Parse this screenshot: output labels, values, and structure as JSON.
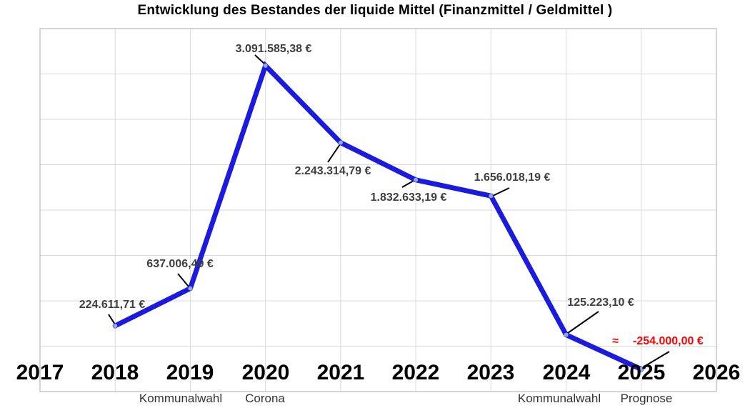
{
  "title": "Entwicklung des Bestandes der liquide Mittel (Finanzmittel / Geldmittel )",
  "chart_data": {
    "type": "line",
    "title": "Entwicklung des Bestandes der liquide Mittel (Finanzmittel / Geldmittel )",
    "xlabel": "",
    "ylabel": "",
    "xlim": [
      2017,
      2026
    ],
    "ylim": [
      -500000,
      3500000
    ],
    "y_gridline_step": 500000,
    "grid": true,
    "legend": "none",
    "x_ticks": [
      "2017",
      "2018",
      "2019",
      "2020",
      "2021",
      "2022",
      "2023",
      "2024",
      "2025",
      "2026"
    ],
    "points": [
      {
        "x": 2018,
        "y": 224611.71,
        "label": "224.611,71 €"
      },
      {
        "x": 2019,
        "y": 637006.49,
        "label": "637.006,49 €"
      },
      {
        "x": 2020,
        "y": 3091585.38,
        "label": "3.091.585,38 €"
      },
      {
        "x": 2021,
        "y": 2243314.79,
        "label": "2.243.314,79 €"
      },
      {
        "x": 2022,
        "y": 1832633.19,
        "label": "1.832.633,19 €"
      },
      {
        "x": 2023,
        "y": 1656018.19,
        "label": "1.656.018,19 €"
      },
      {
        "x": 2024,
        "y": 125223.1,
        "label": "125.223,10 €"
      },
      {
        "x": 2025,
        "y": -254000.0,
        "label": "-254.000,00 €",
        "approx_prefix": "≈",
        "is_forecast": true
      }
    ],
    "annotations": [
      {
        "x": 2019,
        "text": "Kommunalwahl"
      },
      {
        "x": 2020,
        "text": "Corona"
      },
      {
        "x": 2024,
        "text": "Kommunalwahl"
      },
      {
        "x": 2025,
        "text": "Prognose"
      }
    ],
    "colors": {
      "line": "#1B1BE0",
      "marker": "#8FAADC",
      "data_label": "#3F3F3F",
      "forecast_label": "#FF0000",
      "gridline": "#D9D9D9",
      "plot_border": "#C6C6C6",
      "leader_line": "#000000",
      "background": "#FFFFFF"
    }
  }
}
